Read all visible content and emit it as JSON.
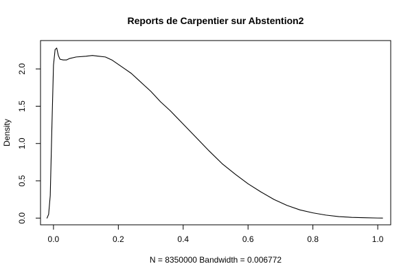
{
  "chart_data": {
    "type": "line",
    "title": "Reports de Carpentier sur Abstention2",
    "xlabel": "N = 8350000   Bandwidth = 0.006772",
    "ylabel": "Density",
    "xlim": [
      -0.04,
      1.04
    ],
    "ylim": [
      -0.09,
      2.38
    ],
    "x_ticks": [
      0.0,
      0.2,
      0.4,
      0.6,
      0.8,
      1.0
    ],
    "x_tick_labels": [
      "0.0",
      "0.2",
      "0.4",
      "0.6",
      "0.8",
      "1.0"
    ],
    "y_ticks": [
      0.0,
      0.5,
      1.0,
      1.5,
      2.0
    ],
    "y_tick_labels": [
      "0.0",
      "0.5",
      "1.0",
      "1.5",
      "2.0"
    ],
    "grid": false,
    "legend": "none",
    "line_color": "#000000",
    "series": [
      {
        "x": [
          -0.02,
          -0.015,
          -0.01,
          -0.005,
          0.0,
          0.005,
          0.01,
          0.015,
          0.02,
          0.03,
          0.04,
          0.05,
          0.07,
          0.1,
          0.12,
          0.14,
          0.16,
          0.18,
          0.2,
          0.22,
          0.24,
          0.26,
          0.28,
          0.3,
          0.33,
          0.36,
          0.4,
          0.44,
          0.48,
          0.52,
          0.56,
          0.6,
          0.64,
          0.68,
          0.72,
          0.76,
          0.8,
          0.84,
          0.88,
          0.92,
          0.96,
          1.0,
          1.015
        ],
        "y": [
          0.0,
          0.05,
          0.3,
          1.2,
          2.05,
          2.26,
          2.28,
          2.18,
          2.13,
          2.12,
          2.12,
          2.14,
          2.16,
          2.17,
          2.18,
          2.17,
          2.16,
          2.12,
          2.06,
          2.0,
          1.94,
          1.86,
          1.78,
          1.7,
          1.56,
          1.44,
          1.26,
          1.08,
          0.9,
          0.73,
          0.59,
          0.46,
          0.35,
          0.25,
          0.17,
          0.11,
          0.07,
          0.04,
          0.02,
          0.01,
          0.005,
          0.001,
          0.0
        ]
      }
    ]
  }
}
